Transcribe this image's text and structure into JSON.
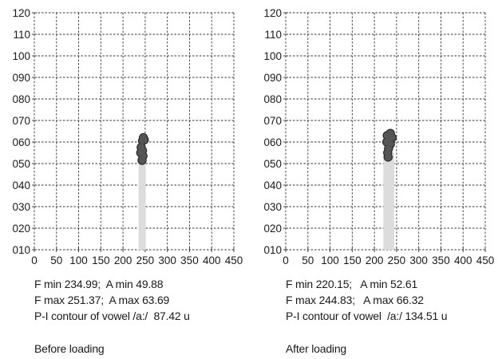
{
  "chart_data": [
    {
      "type": "scatter",
      "title": "",
      "xlabel": "",
      "ylabel": "",
      "xlim": [
        0,
        450
      ],
      "ylim": [
        10,
        120
      ],
      "x_ticks": [
        "0",
        "50",
        "100",
        "150",
        "200",
        "250",
        "300",
        "350",
        "400",
        "450"
      ],
      "y_ticks": [
        "010",
        "020",
        "030",
        "040",
        "050",
        "060",
        "070",
        "080",
        "090",
        "100",
        "110",
        "120"
      ],
      "grid": true,
      "bar": {
        "x_from": 234.99,
        "x_to": 251.37,
        "y_from": 10,
        "y_to": 51
      },
      "blob_points": [
        {
          "x": 244,
          "y": 60.5
        },
        {
          "x": 246,
          "y": 62
        },
        {
          "x": 248,
          "y": 61
        },
        {
          "x": 241,
          "y": 57.5
        },
        {
          "x": 244,
          "y": 56
        },
        {
          "x": 240,
          "y": 55
        },
        {
          "x": 245,
          "y": 53.5
        },
        {
          "x": 243,
          "y": 51.5
        }
      ],
      "stats": {
        "line1": "F min 234.99;  A min 49.88",
        "line2": "F max 251.37;  A max 63.69",
        "line3": "P-I contour of vowel /a:/  87.42 u"
      },
      "caption": "Before loading"
    },
    {
      "type": "scatter",
      "title": "",
      "xlabel": "",
      "ylabel": "",
      "xlim": [
        0,
        450
      ],
      "ylim": [
        10,
        120
      ],
      "x_ticks": [
        "0",
        "50",
        "100",
        "150",
        "200",
        "250",
        "300",
        "350",
        "400",
        "450"
      ],
      "y_ticks": [
        "010",
        "020",
        "030",
        "040",
        "050",
        "060",
        "070",
        "080",
        "090",
        "100",
        "110",
        "120"
      ],
      "grid": true,
      "bar": {
        "x_from": 220.15,
        "x_to": 244.83,
        "y_from": 10,
        "y_to": 55
      },
      "blob_points": [
        {
          "x": 229,
          "y": 63
        },
        {
          "x": 236,
          "y": 64
        },
        {
          "x": 240,
          "y": 62
        },
        {
          "x": 228,
          "y": 60
        },
        {
          "x": 236,
          "y": 59
        },
        {
          "x": 232,
          "y": 57
        },
        {
          "x": 230,
          "y": 55
        },
        {
          "x": 231,
          "y": 53
        }
      ],
      "stats": {
        "line1": "F min 220.15;   A min 52.61",
        "line2": "F max 244.83;   A max 66.32",
        "line3": "P-I contour of vowel  /a:/ 134.51 u"
      },
      "caption": "After loading"
    }
  ]
}
